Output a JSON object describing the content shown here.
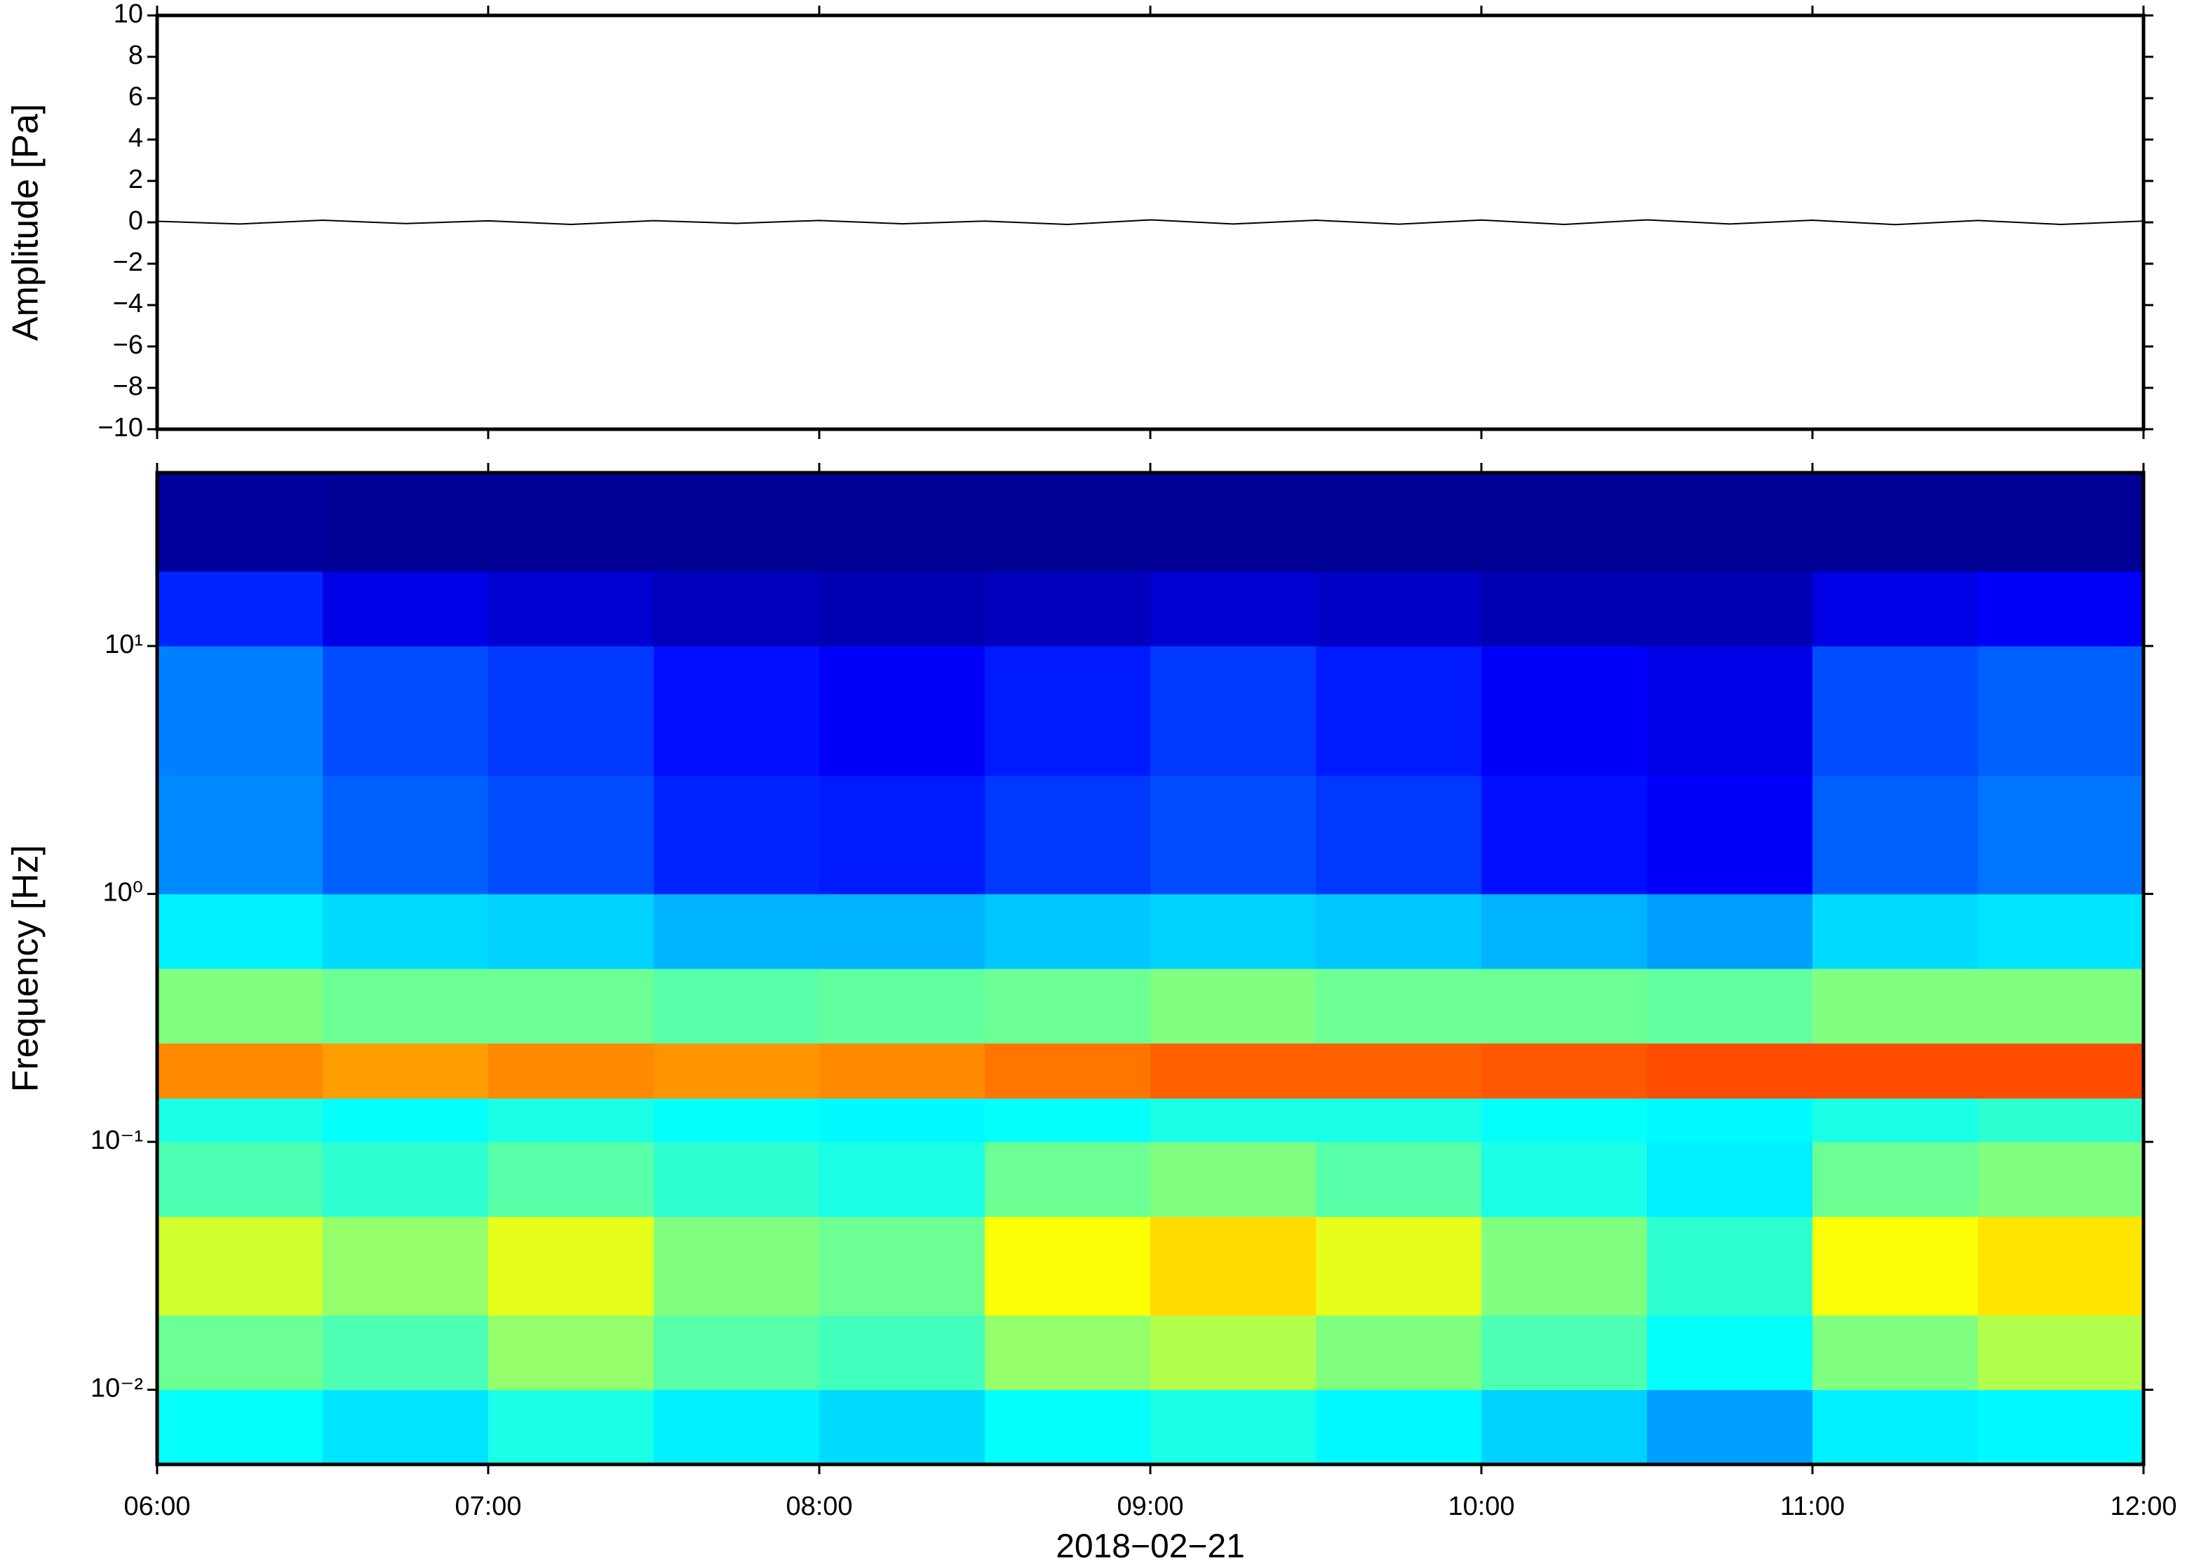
{
  "chart_data": [
    {
      "type": "line",
      "ylabel": "Amplitude [Pa]",
      "xlim": [
        6,
        12
      ],
      "xticks": [
        6,
        7,
        8,
        9,
        10,
        11,
        12
      ],
      "ylim": [
        -10,
        10
      ],
      "yticks": [
        {
          "value": -10,
          "label": "−10"
        },
        {
          "value": -8,
          "label": "−8"
        },
        {
          "value": -6,
          "label": "−6"
        },
        {
          "value": -4,
          "label": "−4"
        },
        {
          "value": -2,
          "label": "−2"
        },
        0,
        2,
        4,
        6,
        8,
        10
      ],
      "color": "#000000",
      "x": [
        6,
        6.25,
        6.5,
        6.75,
        7,
        7.25,
        7.5,
        7.75,
        8,
        8.25,
        8.5,
        8.75,
        9,
        9.25,
        9.5,
        9.75,
        10,
        10.25,
        10.5,
        10.75,
        11,
        11.25,
        11.5,
        11.75,
        12
      ],
      "values": [
        0.05,
        -0.08,
        0.1,
        -0.06,
        0.07,
        -0.1,
        0.08,
        -0.05,
        0.09,
        -0.07,
        0.06,
        -0.1,
        0.12,
        -0.08,
        0.1,
        -0.09,
        0.11,
        -0.1,
        0.12,
        -0.08,
        0.1,
        -0.11,
        0.09,
        -0.1,
        0.06
      ]
    },
    {
      "type": "heatmap",
      "ylabel": "Frequency [Hz]",
      "xlabel": "2018−02−21",
      "ylog": true,
      "colormap": "jet",
      "xlim": [
        6,
        12
      ],
      "xticks": [
        {
          "value": 6,
          "label": "06:00"
        },
        {
          "value": 7,
          "label": "07:00"
        },
        {
          "value": 8,
          "label": "08:00"
        },
        {
          "value": 9,
          "label": "09:00"
        },
        {
          "value": 10,
          "label": "10:00"
        },
        {
          "value": 11,
          "label": "11:00"
        },
        {
          "value": 12,
          "label": "12:00"
        }
      ],
      "ylim": [
        0.005,
        50
      ],
      "yticks": [
        {
          "value": 0.01,
          "label": "10⁻²"
        },
        {
          "value": 0.1,
          "label": "10⁻¹"
        },
        {
          "value": 1,
          "label": "10⁰"
        },
        {
          "value": 10,
          "label": "10¹"
        }
      ],
      "x_bins": [
        6,
        6.5,
        7,
        7.5,
        8,
        8.5,
        9,
        9.5,
        10,
        10.5,
        11,
        11.5,
        12
      ],
      "y_bins": [
        0.005,
        0.01,
        0.02,
        0.05,
        0.1,
        0.15,
        0.25,
        0.5,
        1,
        3,
        10,
        20,
        50
      ],
      "z": [
        [
          0.38,
          0.35,
          0.4,
          0.36,
          0.34,
          0.38,
          0.4,
          0.37,
          0.33,
          0.28,
          0.36,
          0.37
        ],
        [
          0.48,
          0.45,
          0.52,
          0.46,
          0.44,
          0.52,
          0.55,
          0.5,
          0.45,
          0.38,
          0.5,
          0.55
        ],
        [
          0.58,
          0.52,
          0.6,
          0.5,
          0.48,
          0.62,
          0.66,
          0.6,
          0.5,
          0.42,
          0.62,
          0.65
        ],
        [
          0.45,
          0.42,
          0.46,
          0.42,
          0.4,
          0.48,
          0.5,
          0.46,
          0.4,
          0.36,
          0.48,
          0.5
        ],
        [
          0.4,
          0.38,
          0.4,
          0.38,
          0.37,
          0.38,
          0.4,
          0.4,
          0.38,
          0.37,
          0.4,
          0.42
        ],
        [
          0.74,
          0.72,
          0.74,
          0.73,
          0.74,
          0.76,
          0.78,
          0.78,
          0.79,
          0.8,
          0.8,
          0.8
        ],
        [
          0.5,
          0.48,
          0.48,
          0.46,
          0.47,
          0.48,
          0.5,
          0.48,
          0.48,
          0.47,
          0.5,
          0.5
        ],
        [
          0.36,
          0.34,
          0.33,
          0.3,
          0.3,
          0.32,
          0.33,
          0.32,
          0.3,
          0.28,
          0.34,
          0.35
        ],
        [
          0.26,
          0.22,
          0.2,
          0.16,
          0.15,
          0.18,
          0.2,
          0.18,
          0.14,
          0.12,
          0.22,
          0.24
        ],
        [
          0.25,
          0.2,
          0.18,
          0.14,
          0.12,
          0.15,
          0.18,
          0.15,
          0.12,
          0.1,
          0.2,
          0.22
        ],
        [
          0.16,
          0.1,
          0.08,
          0.06,
          0.05,
          0.06,
          0.08,
          0.07,
          0.05,
          0.05,
          0.1,
          0.12
        ],
        [
          0.03,
          0.02,
          0.02,
          0.02,
          0.02,
          0.02,
          0.02,
          0.02,
          0.02,
          0.02,
          0.02,
          0.02
        ]
      ]
    }
  ]
}
